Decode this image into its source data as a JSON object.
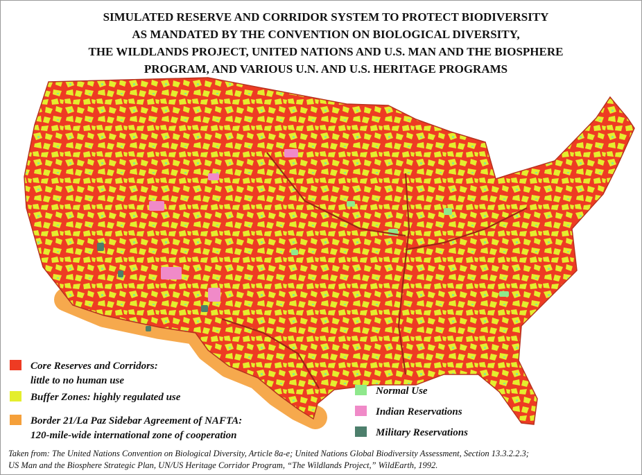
{
  "title_lines": [
    "SIMULATED RESERVE AND CORRIDOR SYSTEM TO PROTECT BIODIVERSITY",
    "AS MANDATED BY THE CONVENTION ON BIOLOGICAL DIVERSITY,",
    "THE WILDLANDS PROJECT, UNITED NATIONS AND U.S. MAN AND THE BIOSPHERE",
    "PROGRAM, AND VARIOUS U.N. AND U.S. HERITAGE PROGRAMS"
  ],
  "legend": [
    {
      "label_lines": [
        "Core Reserves and Corridors:",
        "little to no human use"
      ],
      "color": "#ee3b23"
    },
    {
      "label_lines": [
        "Buffer Zones: highly regulated use"
      ],
      "color": "#e4ee2e"
    },
    {
      "label_lines": [
        "Border 21/La Paz Sidebar Agreement of NAFTA:",
        "120-mile-wide international zone of cooperation"
      ],
      "color": "#f5a03a"
    },
    {
      "label_lines": [
        "Normal Use"
      ],
      "color": "#8fe88c"
    },
    {
      "label_lines": [
        "Indian Reservations"
      ],
      "color": "#f08ac8"
    },
    {
      "label_lines": [
        "Military Reservations"
      ],
      "color": "#4d7f6c"
    }
  ],
  "source_lines": [
    "Taken from: The United Nations Convention on Biological Diversity, Article 8a-e; United Nations Global Biodiversity Assessment, Section 13.3.2.2.3;",
    "US Man and the Biosphere Strategic Plan, UN/US Heritage Corridor Program, “The Wildlands Project,” WildEarth, 1992."
  ]
}
